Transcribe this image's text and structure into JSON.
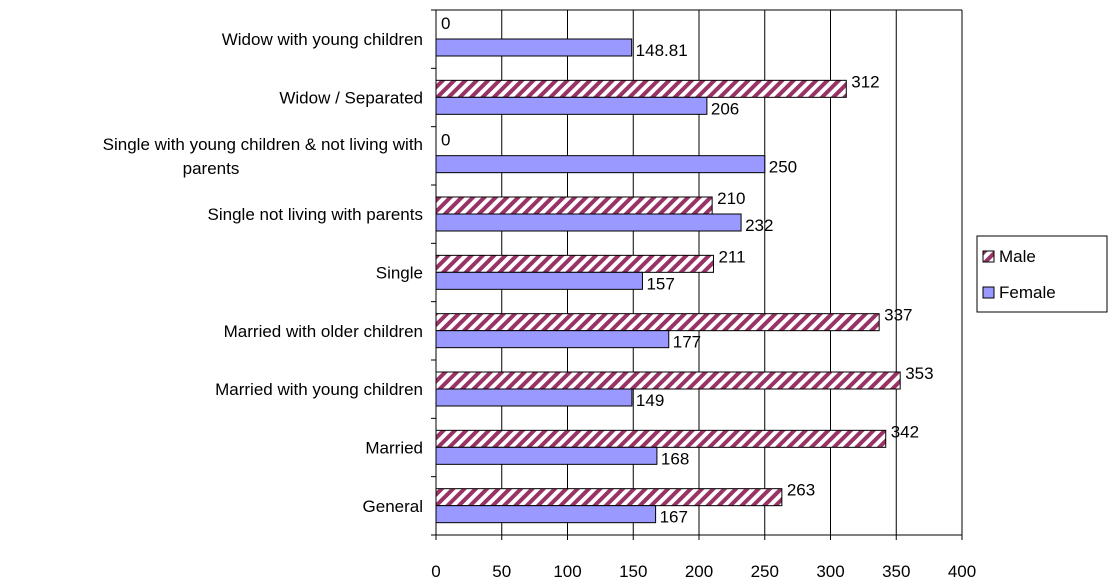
{
  "chart_data": {
    "type": "bar",
    "orientation": "horizontal",
    "categories": [
      "General",
      "Married",
      "Married with young children",
      "Married with older children",
      "Single",
      "Single not living with parents",
      "Single with young children & not living with parents",
      "Widow / Separated",
      "Widow with young children"
    ],
    "category_label_lines": [
      [
        "General"
      ],
      [
        "Married"
      ],
      [
        "Married with young children"
      ],
      [
        "Married with older children"
      ],
      [
        "Single"
      ],
      [
        "Single not living with parents"
      ],
      [
        "Single with young children & not living with",
        "parents"
      ],
      [
        "Widow / Separated"
      ],
      [
        "Widow with young children"
      ]
    ],
    "series": [
      {
        "name": "Male",
        "values": [
          263,
          342,
          353,
          337,
          211,
          210,
          0,
          312,
          0
        ],
        "labels": [
          "263",
          "342",
          "353",
          "337",
          "211",
          "210",
          "0",
          "312",
          "0"
        ],
        "fill": "hatched",
        "color": "#993366"
      },
      {
        "name": "Female",
        "values": [
          167,
          168,
          149,
          177,
          157,
          232,
          250,
          206,
          148.81
        ],
        "labels": [
          "167",
          "168",
          "149",
          "177",
          "157",
          "232",
          "250",
          "206",
          "148.81"
        ],
        "fill": "solid",
        "color": "#9999ff"
      }
    ],
    "xlim": [
      0,
      400
    ],
    "xticks": [
      0,
      50,
      100,
      150,
      200,
      250,
      300,
      350,
      400
    ],
    "title": "",
    "xlabel": "",
    "ylabel": "",
    "grid": "vertical",
    "legend_position": "right"
  }
}
